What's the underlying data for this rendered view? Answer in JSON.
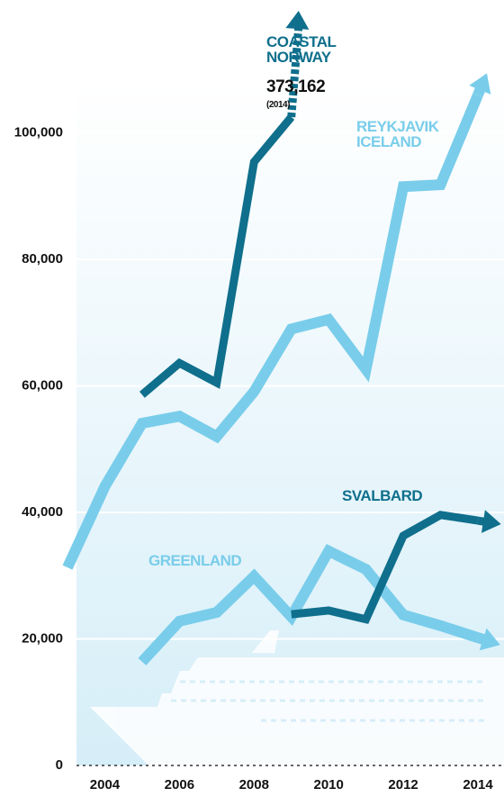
{
  "chart_data": {
    "type": "line",
    "annotation": "373,162",
    "annotation_note": "(2014)",
    "xlim": [
      2003,
      2014
    ],
    "xticks": [
      2004,
      2006,
      2008,
      2010,
      2012,
      2014
    ],
    "ylim": [
      0,
      121000
    ],
    "yticks": [
      {
        "value": 0,
        "label": "0"
      },
      {
        "value": 20000,
        "label": "20,000"
      },
      {
        "value": 40000,
        "label": "40,000"
      },
      {
        "value": 60000,
        "label": "60,000"
      },
      {
        "value": 80000,
        "label": "80,000"
      },
      {
        "value": 100000,
        "label": "100,000"
      }
    ],
    "grid": true,
    "series": [
      {
        "name": "COASTAL NORWAY",
        "color": "#0f6f8c",
        "width": 9,
        "x": [
          2005,
          2006,
          2007,
          2008,
          2009
        ],
        "values": [
          58600,
          63600,
          60500,
          95400,
          102500
        ]
      },
      {
        "name": "REYKJAVIK ICELAND",
        "color": "#79cdea",
        "width": 12,
        "x": [
          2003,
          2004,
          2005,
          2006,
          2007,
          2008,
          2009,
          2010,
          2011,
          2012,
          2013,
          2014
        ],
        "values": [
          31300,
          44100,
          54100,
          55200,
          52000,
          59100,
          69000,
          70500,
          62600,
          91500,
          91800,
          106000
        ]
      },
      {
        "name": "GREENLAND",
        "color": "#79cdea",
        "width": 12,
        "x": [
          2005,
          2006,
          2007,
          2008,
          2009,
          2010,
          2011,
          2012,
          2013,
          2014
        ],
        "values": [
          16400,
          22800,
          24200,
          29900,
          23500,
          33900,
          31000,
          23800,
          22100,
          20200
        ]
      },
      {
        "name": "SVALBARD",
        "color": "#0f6f8c",
        "width": 9,
        "x": [
          2009,
          2010,
          2011,
          2012,
          2013,
          2014
        ],
        "values": [
          23900,
          24500,
          23100,
          36300,
          39600,
          38700
        ]
      }
    ]
  }
}
